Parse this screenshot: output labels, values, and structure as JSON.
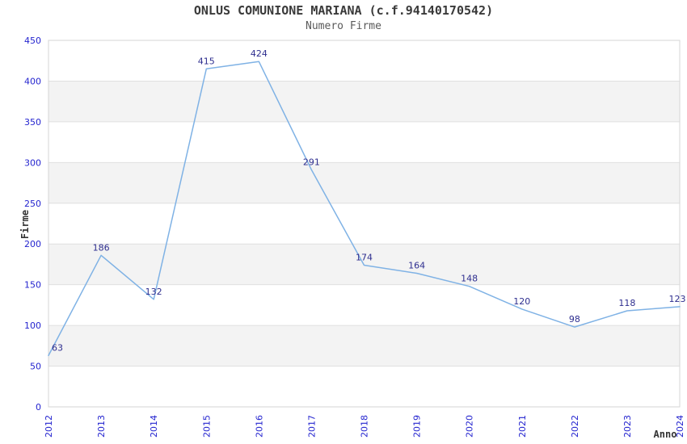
{
  "chart_data": {
    "type": "line",
    "title": "ONLUS COMUNIONE MARIANA (c.f.94140170542)",
    "subtitle": "Numero Firme",
    "xlabel": "Anno",
    "ylabel": "Firme",
    "categories": [
      "2012",
      "2013",
      "2014",
      "2015",
      "2016",
      "2017",
      "2018",
      "2019",
      "2020",
      "2021",
      "2022",
      "2023",
      "2024"
    ],
    "values": [
      63,
      186,
      132,
      415,
      424,
      291,
      174,
      164,
      148,
      120,
      98,
      118,
      123
    ],
    "ylim": [
      0,
      450
    ],
    "ytick_step": 50,
    "yticks": [
      0,
      50,
      100,
      150,
      200,
      250,
      300,
      350,
      400,
      450
    ],
    "legend": "none",
    "grid": "horizontal alternating bands",
    "data_labels_visible": true,
    "colors": {
      "line": "#7fb2e5",
      "band": "#f3f3f3",
      "gridline": "#e0e0e0",
      "plot_border": "#d6d6d6",
      "tick_label": "#2424cf",
      "data_label": "#2e2e8f",
      "title": "#3a3a3a",
      "subtitle": "#5a5a5a",
      "axis_title": "#333333",
      "background": "#ffffff"
    }
  }
}
